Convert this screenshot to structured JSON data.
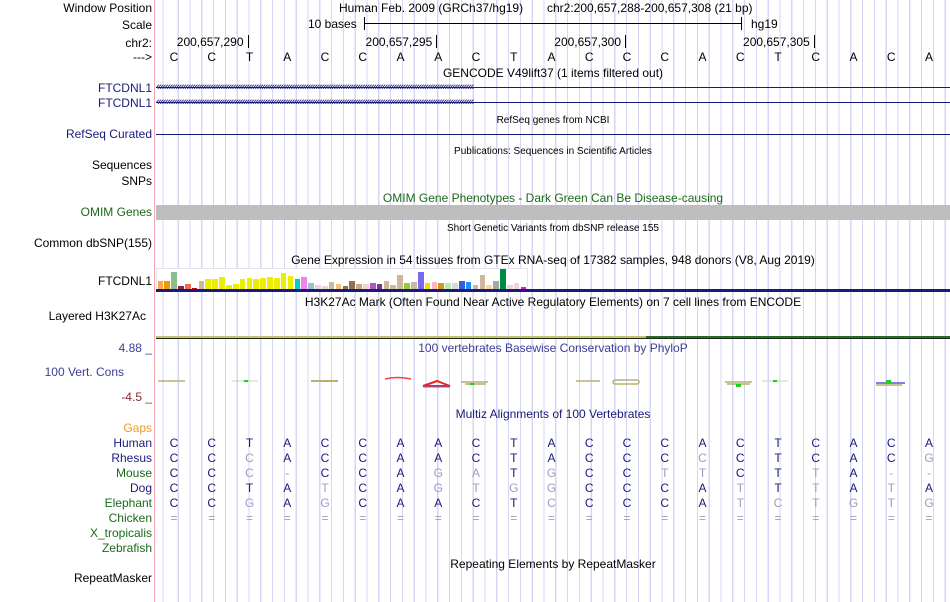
{
  "header": {
    "window_position_label": "Window Position",
    "assembly_text": "Human Feb. 2009 (GRCh37/hg19)",
    "position_text": "chr2:200,657,288-200,657,308 (21 bp)",
    "scale_label": "Scale",
    "scale_text": "10 bases",
    "scale_db": "hg19",
    "chrom_label": "chr2:",
    "strand_label": "--->",
    "ticks": [
      "200,657,290",
      "200,657,295",
      "200,657,300",
      "200,657,305"
    ]
  },
  "sequence": [
    "C",
    "C",
    "T",
    "A",
    "C",
    "C",
    "A",
    "A",
    "C",
    "T",
    "A",
    "C",
    "C",
    "C",
    "A",
    "C",
    "T",
    "C",
    "A",
    "C",
    "A"
  ],
  "tracks": {
    "gencode": {
      "title": "GENCODE V49lift37 (1 items filtered out)",
      "items": [
        {
          "label": "FTCDNL1",
          "strand": "-"
        },
        {
          "label": "FTCDNL1",
          "strand": "-"
        }
      ]
    },
    "refseq": {
      "title": "RefSeq genes from NCBI",
      "label": "RefSeq Curated"
    },
    "publications": {
      "title": "Publications: Sequences in Scientific Articles",
      "labels": [
        "Sequences",
        "SNPs"
      ]
    },
    "omim": {
      "title": "OMIM Gene Phenotypes - Dark Green Can Be Disease-causing",
      "label": "OMIM Genes",
      "bar_color": "#bebebe"
    },
    "dbsnp": {
      "title": "Short Genetic Variants from dbSNP release 155",
      "label": "Common dbSNP(155)"
    },
    "gtex": {
      "title": "Gene Expression in 54 tissues from GTEx RNA-seq of 17382 samples, 948 donors (V8, Aug 2019)",
      "label": "FTCDNL1",
      "tissues": [
        {
          "color": "#ffa54f",
          "value": 0.45
        },
        {
          "color": "#ee9a00",
          "value": 0.5
        },
        {
          "color": "#8fbc8f",
          "value": 1.0
        },
        {
          "color": "#8b1c62",
          "value": 0.15
        },
        {
          "color": "#ee6a50",
          "value": 0.3
        },
        {
          "color": "#cd0000",
          "value": 0.08
        },
        {
          "color": "#cdb79e",
          "value": 0.45
        },
        {
          "color": "#eeee00",
          "value": 0.6
        },
        {
          "color": "#eeee00",
          "value": 0.6
        },
        {
          "color": "#eeee00",
          "value": 0.7
        },
        {
          "color": "#eeee00",
          "value": 0.25
        },
        {
          "color": "#eeee00",
          "value": 0.3
        },
        {
          "color": "#eeee00",
          "value": 0.6
        },
        {
          "color": "#eeee00",
          "value": 0.65
        },
        {
          "color": "#eeee00",
          "value": 0.6
        },
        {
          "color": "#eeee00",
          "value": 0.65
        },
        {
          "color": "#eeee00",
          "value": 0.7
        },
        {
          "color": "#eeee00",
          "value": 0.65
        },
        {
          "color": "#eeee00",
          "value": 0.95
        },
        {
          "color": "#eeee00",
          "value": 0.75
        },
        {
          "color": "#00cdcd",
          "value": 0.6
        },
        {
          "color": "#ee82ee",
          "value": 0.7
        },
        {
          "color": "#9ac0cd",
          "value": 0.35
        },
        {
          "color": "#eed5d2",
          "value": 0.25
        },
        {
          "color": "#eed5d2",
          "value": 0.2
        },
        {
          "color": "#cdb79e",
          "value": 0.4
        },
        {
          "color": "#f0c080",
          "value": 0.3
        },
        {
          "color": "#8b7355",
          "value": 0.2
        },
        {
          "color": "#8b7355",
          "value": 0.45
        },
        {
          "color": "#cdaa7d",
          "value": 0.3
        },
        {
          "color": "#eed5d2",
          "value": 0.3
        },
        {
          "color": "#b452cd",
          "value": 0.35
        },
        {
          "color": "#7a378b",
          "value": 0.3
        },
        {
          "color": "#cdb79e",
          "value": 0.5
        },
        {
          "color": "#cdb79e",
          "value": 0.25
        },
        {
          "color": "#cdb79e",
          "value": 0.8
        },
        {
          "color": "#9acd32",
          "value": 0.35
        },
        {
          "color": "#cdb79e",
          "value": 0.4
        },
        {
          "color": "#7b68ee",
          "value": 1.0
        },
        {
          "color": "#ffd700",
          "value": 0.35
        },
        {
          "color": "#ffb6c1",
          "value": 0.4
        },
        {
          "color": "#cd9b1d",
          "value": 0.35
        },
        {
          "color": "#b4eeb4",
          "value": 0.35
        },
        {
          "color": "#d9d9d9",
          "value": 0.35
        },
        {
          "color": "#3a5fcd",
          "value": 0.45
        },
        {
          "color": "#1e90ff",
          "value": 0.4
        },
        {
          "color": "#cdb79e",
          "value": 0.25
        },
        {
          "color": "#cdb79e",
          "value": 0.8
        },
        {
          "color": "#ffd39b",
          "value": 0.25
        },
        {
          "color": "#a6a6a6",
          "value": 0.45
        },
        {
          "color": "#008b45",
          "value": 1.15
        },
        {
          "color": "#eed5d2",
          "value": 0.25
        },
        {
          "color": "#eed5d2",
          "value": 0.35
        },
        {
          "color": "#ff00ff",
          "value": 0.1
        }
      ]
    },
    "h3k27ac": {
      "title": "H3K27Ac Mark (Often Found Near Active Regulatory Elements) on 7 cell lines from ENCODE",
      "label": "Layered H3K27Ac"
    },
    "phylop": {
      "title": "100 vertebrates Basewise Conservation by PhyloP",
      "label": "100 Vert. Cons",
      "max_label": "4.88 _",
      "min_label": "-4.5 _"
    },
    "multiz": {
      "title": "Multiz Alignments of 100 Vertebrates",
      "gaps_label": "Gaps",
      "species": [
        {
          "name": "Human",
          "color": "#1a1a7a",
          "bases": [
            "C",
            "C",
            "T",
            "A",
            "C",
            "C",
            "A",
            "A",
            "C",
            "T",
            "A",
            "C",
            "C",
            "C",
            "A",
            "C",
            "T",
            "C",
            "A",
            "C",
            "A"
          ]
        },
        {
          "name": "Rhesus",
          "color": "#1a1a7a",
          "bases": [
            "C",
            "C",
            "c",
            "A",
            "C",
            "C",
            "A",
            "A",
            "C",
            "T",
            "A",
            "C",
            "C",
            "C",
            "c",
            "C",
            "T",
            "C",
            "A",
            "C",
            "g"
          ]
        },
        {
          "name": "Mouse",
          "color": "#1a6a1a",
          "bases": [
            "C",
            "C",
            "c",
            "-",
            "C",
            "C",
            "A",
            "g",
            "a",
            "T",
            "g",
            "C",
            "C",
            "t",
            "t",
            "C",
            "T",
            "t",
            "A",
            "-",
            "-"
          ]
        },
        {
          "name": "Dog",
          "color": "#1a1a7a",
          "bases": [
            "C",
            "C",
            "T",
            "A",
            "t",
            "C",
            "A",
            "g",
            "t",
            "g",
            "g",
            "C",
            "C",
            "C",
            "A",
            "t",
            "T",
            "t",
            "A",
            "t",
            "A"
          ]
        },
        {
          "name": "Elephant",
          "color": "#1a6a1a",
          "bases": [
            "C",
            "C",
            "g",
            "A",
            "g",
            "C",
            "A",
            "A",
            "C",
            "T",
            "c",
            "C",
            "C",
            "C",
            "A",
            "t",
            "c",
            "t",
            "g",
            "t",
            "g"
          ]
        },
        {
          "name": "Chicken",
          "color": "#1a6a1a",
          "bases": [
            "=",
            "=",
            "=",
            "=",
            "=",
            "=",
            "=",
            "=",
            "=",
            "=",
            "=",
            "=",
            "=",
            "=",
            "=",
            "=",
            "=",
            "=",
            "=",
            "=",
            "="
          ]
        },
        {
          "name": "X_tropicalis",
          "color": "#1a6a1a",
          "bases": []
        },
        {
          "name": "Zebrafish",
          "color": "#1a6a1a",
          "bases": []
        }
      ]
    },
    "repeatmasker": {
      "title": "Repeating Elements by RepeatMasker",
      "label": "RepeatMasker"
    }
  }
}
